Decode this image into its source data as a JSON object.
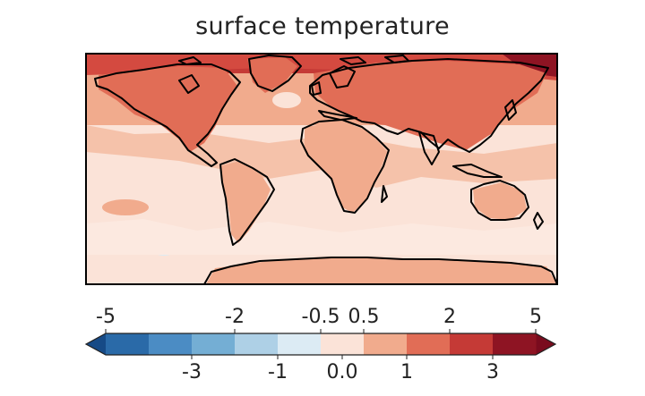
{
  "title": "surface temperature",
  "colorbar": {
    "bounds": [
      -5,
      -4,
      -3,
      -2,
      -1,
      -0.5,
      0.5,
      1,
      2,
      3,
      5
    ],
    "top_ticks": [
      {
        "value": -5,
        "label": "-5"
      },
      {
        "value": -2,
        "label": "-2"
      },
      {
        "value": -0.5,
        "label": "-0.5"
      },
      {
        "value": 0.5,
        "label": "0.5"
      },
      {
        "value": 2,
        "label": "2"
      },
      {
        "value": 5,
        "label": "5"
      }
    ],
    "bottom_ticks": [
      {
        "value": -3,
        "label": "-3"
      },
      {
        "value": -1,
        "label": "-1"
      },
      {
        "value": 0.0,
        "label": "0.0"
      },
      {
        "value": 1,
        "label": "1"
      },
      {
        "value": 3,
        "label": "3"
      }
    ],
    "colors": [
      "#2a6aa8",
      "#4b8cc4",
      "#74aed4",
      "#aed0e6",
      "#dcebf4",
      "#fbe3d8",
      "#f1ab8d",
      "#e16d56",
      "#c53a36",
      "#8e1423"
    ],
    "under_color": "#164a86",
    "over_color": "#7a0b1e",
    "extend": "both"
  },
  "map": {
    "projection": "equirectangular",
    "ocean_base_color": "#fbe3d8",
    "coastline_color": "#000000"
  }
}
